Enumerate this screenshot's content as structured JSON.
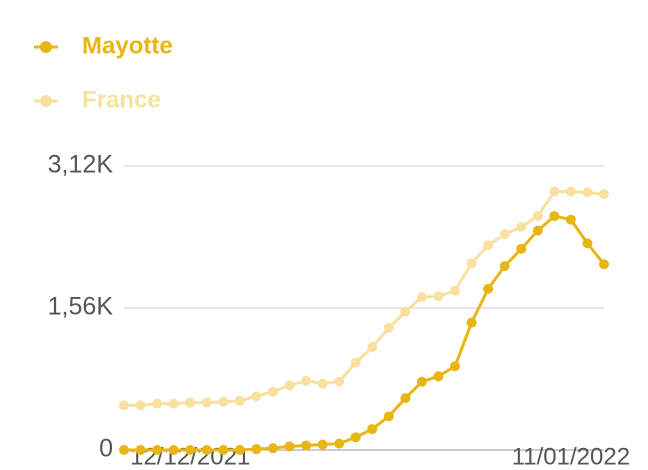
{
  "chart_data": {
    "type": "line",
    "categories": [
      null,
      null,
      null,
      null,
      "12/12/2021",
      null,
      null,
      null,
      null,
      null,
      null,
      null,
      null,
      null,
      null,
      null,
      null,
      null,
      null,
      null,
      null,
      null,
      null,
      null,
      null,
      null,
      null,
      "11/01/2022",
      null,
      null
    ],
    "series": [
      {
        "name": "Mayotte",
        "color": "#e8b614",
        "values": [
          0,
          0,
          0,
          0,
          0,
          0,
          0,
          0,
          10,
          20,
          40,
          50,
          60,
          70,
          140,
          230,
          370,
          570,
          750,
          810,
          920,
          1400,
          1770,
          2020,
          2210,
          2410,
          2570,
          2530,
          2270,
          2040
        ]
      },
      {
        "name": "France",
        "color": "#f8e1a0",
        "values": [
          490,
          490,
          510,
          510,
          520,
          520,
          530,
          540,
          590,
          640,
          710,
          760,
          730,
          750,
          960,
          1130,
          1340,
          1520,
          1680,
          1690,
          1750,
          2050,
          2250,
          2370,
          2450,
          2570,
          2840,
          2840,
          2830,
          2810
        ]
      }
    ],
    "ylim": [
      0,
      3120
    ],
    "yticks": [
      0,
      {
        "value": 1560,
        "label": "1,56K"
      },
      {
        "value": 3120,
        "label": "3,12K"
      }
    ],
    "grid": true
  }
}
